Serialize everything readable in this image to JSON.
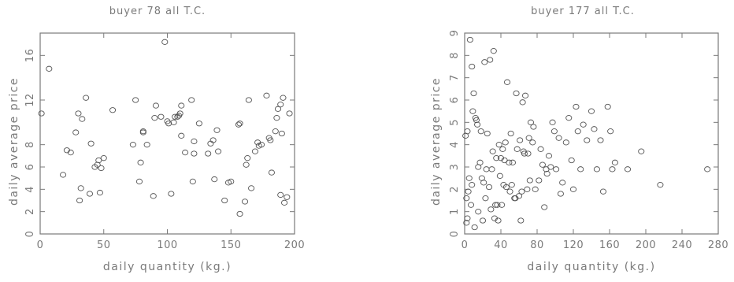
{
  "chart_data": [
    {
      "type": "scatter",
      "title": "buyer 78 all T.C.",
      "xlabel": "daily quantity (kg.)",
      "ylabel": "daily average price",
      "xlim": [
        0,
        200
      ],
      "ylim": [
        0,
        18
      ],
      "xticks": [
        "0",
        "50",
        "100",
        "150",
        "200"
      ],
      "yticks": [
        "0",
        "2",
        "4",
        "6",
        "8",
        "12",
        "16"
      ],
      "ytick_values": [
        0,
        2,
        4,
        6,
        8,
        12,
        16
      ],
      "x": [
        1,
        7,
        18,
        21,
        24,
        28,
        30,
        31,
        32,
        33,
        36,
        39,
        40,
        43,
        45,
        46,
        47,
        48,
        50,
        57,
        73,
        75,
        78,
        79,
        81,
        81,
        84,
        89,
        90,
        91,
        95,
        98,
        100,
        101,
        103,
        105,
        106,
        108,
        109,
        110,
        111,
        111,
        114,
        119,
        120,
        121,
        121,
        125,
        132,
        134,
        136,
        137,
        139,
        140,
        145,
        148,
        150,
        156,
        157,
        157,
        161,
        162,
        163,
        164,
        166,
        169,
        171,
        172,
        174,
        178,
        180,
        181,
        182,
        185,
        186,
        187,
        189,
        189,
        190,
        191,
        192,
        194,
        196
      ],
      "y": [
        10.8,
        14.8,
        5.3,
        7.5,
        7.3,
        9.1,
        10.8,
        3.0,
        4.1,
        10.3,
        12.2,
        3.6,
        8.1,
        6.0,
        6.2,
        6.6,
        3.7,
        5.9,
        6.8,
        11.1,
        8.0,
        12.0,
        4.7,
        6.4,
        9.1,
        9.2,
        8.0,
        3.4,
        10.4,
        11.5,
        10.5,
        17.2,
        10.1,
        9.9,
        3.6,
        10.0,
        10.5,
        10.5,
        10.6,
        10.8,
        8.8,
        11.5,
        7.3,
        12.0,
        4.7,
        8.3,
        7.2,
        9.9,
        7.2,
        8.1,
        8.4,
        4.9,
        9.3,
        7.4,
        3.0,
        4.6,
        4.7,
        9.8,
        9.9,
        1.8,
        2.9,
        6.2,
        6.8,
        12.0,
        4.1,
        7.4,
        8.2,
        7.9,
        8.0,
        12.4,
        8.6,
        8.4,
        5.5,
        9.2,
        10.4,
        11.2,
        11.6,
        3.5,
        9.0,
        12.2,
        2.8,
        3.3,
        10.8
      ]
    },
    {
      "type": "scatter",
      "title": "buyer 177 all T.C.",
      "xlabel": "daily quantity (kg.)",
      "ylabel": "daily average price",
      "xlim": [
        0,
        280
      ],
      "ylim": [
        0,
        9
      ],
      "xticks": [
        "0",
        "40",
        "80",
        "120",
        "160",
        "200",
        "240",
        "280"
      ],
      "xtick_values": [
        0,
        40,
        80,
        120,
        160,
        200,
        240,
        280
      ],
      "yticks": [
        "0",
        "1",
        "2",
        "3",
        "4",
        "5",
        "6",
        "7",
        "8",
        "9"
      ],
      "ytick_values": [
        0,
        1,
        2,
        3,
        4,
        5,
        6,
        7,
        8,
        9
      ],
      "x": [
        1,
        2,
        2,
        3,
        3,
        4,
        5,
        6,
        7,
        8,
        8,
        9,
        10,
        11,
        12,
        13,
        14,
        15,
        15,
        17,
        18,
        19,
        20,
        21,
        22,
        23,
        24,
        25,
        27,
        28,
        29,
        30,
        31,
        32,
        33,
        34,
        35,
        36,
        37,
        38,
        39,
        40,
        41,
        42,
        43,
        44,
        45,
        46,
        47,
        49,
        50,
        51,
        52,
        53,
        55,
        56,
        57,
        58,
        60,
        61,
        62,
        63,
        64,
        65,
        66,
        67,
        69,
        70,
        71,
        72,
        73,
        75,
        76,
        78,
        82,
        84,
        86,
        88,
        90,
        91,
        93,
        95,
        97,
        99,
        101,
        104,
        106,
        108,
        112,
        115,
        118,
        120,
        123,
        125,
        128,
        131,
        135,
        140,
        143,
        146,
        150,
        153,
        158,
        161,
        163,
        166,
        180,
        195,
        216,
        268
      ],
      "y": [
        4.4,
        0.5,
        1.6,
        4.6,
        0.7,
        1.9,
        2.5,
        8.7,
        1.3,
        7.5,
        2.2,
        5.5,
        6.3,
        0.3,
        5.2,
        5.1,
        4.9,
        1.0,
        3.0,
        3.2,
        4.6,
        2.5,
        0.6,
        2.3,
        7.7,
        1.6,
        2.9,
        4.5,
        2.1,
        7.8,
        1.1,
        2.9,
        3.7,
        8.2,
        0.7,
        1.3,
        3.4,
        1.3,
        0.6,
        4.0,
        2.6,
        3.4,
        1.3,
        3.8,
        2.2,
        3.3,
        4.1,
        2.1,
        6.8,
        3.2,
        1.9,
        4.5,
        2.2,
        3.2,
        1.6,
        1.6,
        6.3,
        3.8,
        1.7,
        4.2,
        0.6,
        1.9,
        5.9,
        3.7,
        3.6,
        6.2,
        2.0,
        3.6,
        4.3,
        2.4,
        5.0,
        4.1,
        4.8,
        2.0,
        2.4,
        3.8,
        3.1,
        1.2,
        2.9,
        2.7,
        3.5,
        3.0,
        5.0,
        4.6,
        2.9,
        4.3,
        1.8,
        2.3,
        4.1,
        5.2,
        3.3,
        2.0,
        5.7,
        4.6,
        2.9,
        4.9,
        4.2,
        5.5,
        4.7,
        2.9,
        4.2,
        1.9,
        5.7,
        4.6,
        2.9,
        3.2,
        2.9,
        3.7,
        2.2,
        2.9
      ]
    }
  ]
}
